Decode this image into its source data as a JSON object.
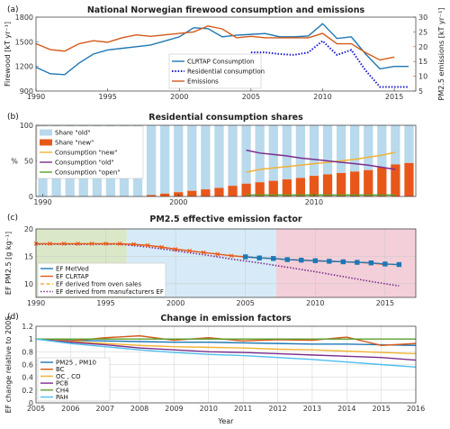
{
  "chart_data": [
    {
      "panel": "(a)",
      "type": "line",
      "title": "National Norwegian firewood consumption and emissions",
      "ylabel": "Firewood [kT yr⁻¹]",
      "y2label": "PM2.5 emissions [kT yr⁻¹]",
      "xlim": [
        1990,
        2016.5
      ],
      "ylim": [
        900,
        1800
      ],
      "y2lim": [
        5,
        30
      ],
      "xticks": [
        1990,
        1995,
        2000,
        2005,
        2010,
        2015
      ],
      "yticks": [
        900,
        1200,
        1500,
        1800
      ],
      "y2ticks": [
        5,
        10,
        15,
        20,
        25,
        30
      ],
      "left_axis_color": "#3a7fc1",
      "right_axis_color": "#d45a1a",
      "legend_position": "center",
      "series": [
        {
          "name": "CLRTAP Consumption",
          "axis": "left",
          "color": "#1f77b4",
          "style": "solid",
          "x": [
            1990,
            1991,
            1992,
            1993,
            1994,
            1995,
            1996,
            1997,
            1998,
            1999,
            2000,
            2001,
            2002,
            2003,
            2004,
            2005,
            2006,
            2007,
            2008,
            2009,
            2010,
            2011,
            2012,
            2013,
            2014,
            2015,
            2016
          ],
          "y": [
            1190,
            1110,
            1100,
            1240,
            1350,
            1400,
            1420,
            1440,
            1460,
            1510,
            1560,
            1670,
            1660,
            1560,
            1580,
            1590,
            1600,
            1560,
            1560,
            1570,
            1720,
            1540,
            1560,
            1350,
            1170,
            1200,
            1200
          ]
        },
        {
          "name": "Residential consumption",
          "axis": "left",
          "color": "#1a1acc",
          "style": "dotted",
          "x": [
            2005,
            2006,
            2007,
            2008,
            2009,
            2010,
            2011,
            2012,
            2013,
            2014,
            2015,
            2016
          ],
          "y": [
            1370,
            1370,
            1350,
            1340,
            1370,
            1510,
            1340,
            1400,
            1150,
            950,
            950,
            950
          ]
        },
        {
          "name": "Emissions",
          "axis": "right",
          "color": "#d45a1a",
          "style": "solid",
          "x": [
            1990,
            1991,
            1992,
            1993,
            1994,
            1995,
            1996,
            1997,
            1998,
            1999,
            2000,
            2001,
            2002,
            2003,
            2004,
            2005,
            2006,
            2007,
            2008,
            2009,
            2010,
            2011,
            2012,
            2013,
            2014,
            2015
          ],
          "y": [
            21,
            19,
            18.5,
            21,
            22,
            21.5,
            23,
            24,
            23.5,
            24,
            24.5,
            25,
            27,
            26,
            23,
            23.5,
            23,
            23,
            23,
            23,
            24.5,
            21,
            21,
            18,
            15.5,
            16.5
          ]
        }
      ]
    },
    {
      "panel": "(b)",
      "type": "bar",
      "title": "Residential consumption shares",
      "ylabel": "%",
      "xlim": [
        1990,
        2017
      ],
      "ylim": [
        0,
        100
      ],
      "xticks": [
        1990,
        2000,
        2010
      ],
      "yticks": [
        0,
        50,
        100
      ],
      "legend_position": "top-left",
      "series": [
        {
          "name": "Share \"old\"",
          "type": "bar",
          "color": "#b9d9ec",
          "x": [
            1990,
            1991,
            1992,
            1993,
            1994,
            1995,
            1996,
            1997,
            1998,
            1999,
            2000,
            2001,
            2002,
            2003,
            2004,
            2005,
            2006,
            2007,
            2008,
            2009,
            2010,
            2011,
            2012,
            2013,
            2014,
            2015,
            2016,
            2017
          ],
          "y": [
            100,
            100,
            100,
            100,
            100,
            100,
            100,
            100,
            98,
            96,
            94,
            92,
            90,
            88,
            85,
            82,
            80,
            78,
            76,
            74,
            71,
            69,
            67,
            65,
            63,
            59,
            55,
            53
          ]
        },
        {
          "name": "Share \"new\"",
          "type": "bar",
          "color": "#e8571a",
          "x": [
            1990,
            1991,
            1992,
            1993,
            1994,
            1995,
            1996,
            1997,
            1998,
            1999,
            2000,
            2001,
            2002,
            2003,
            2004,
            2005,
            2006,
            2007,
            2008,
            2009,
            2010,
            2011,
            2012,
            2013,
            2014,
            2015,
            2016,
            2017
          ],
          "y": [
            0,
            0,
            0,
            0,
            0,
            0,
            0,
            0,
            2,
            4,
            6,
            8,
            10,
            12,
            15,
            18,
            20,
            22,
            24,
            26,
            29,
            31,
            33,
            35,
            37,
            41,
            45,
            47
          ]
        },
        {
          "name": "Consumption \"new\"",
          "type": "line",
          "color": "#f2b233",
          "x": [
            2005,
            2006,
            2007,
            2008,
            2009,
            2010,
            2011,
            2012,
            2013,
            2014,
            2015,
            2016
          ],
          "y": [
            34,
            38,
            40,
            42,
            44,
            46,
            48,
            50,
            52,
            55,
            58,
            62
          ]
        },
        {
          "name": "Consumption \"old\"",
          "type": "line",
          "color": "#7b2d8e",
          "x": [
            2005,
            2006,
            2007,
            2008,
            2009,
            2010,
            2011,
            2012,
            2013,
            2014,
            2015,
            2016
          ],
          "y": [
            65,
            61,
            59,
            57,
            54,
            52,
            50,
            48,
            46,
            44,
            41,
            38
          ]
        },
        {
          "name": "Consumption \"open\"",
          "type": "line",
          "color": "#5aa02c",
          "x": [
            2005,
            2006,
            2007,
            2008,
            2009,
            2010,
            2011,
            2012,
            2013,
            2014,
            2015,
            2016
          ],
          "y": [
            2,
            2,
            2,
            2,
            2,
            2,
            2,
            2,
            2,
            2,
            2,
            2
          ]
        }
      ]
    },
    {
      "panel": "(c)",
      "type": "line",
      "title": "PM2.5 effective emission factor",
      "ylabel": "EF PM2.5 [g kg⁻¹]",
      "xlim": [
        1990,
        2017.2
      ],
      "ylim": [
        7.5,
        20
      ],
      "xticks": [
        1990,
        1995,
        2000,
        2005,
        2010,
        2015
      ],
      "yticks": [
        10,
        15,
        20
      ],
      "legend_position": "bottom-left",
      "shaded_regions": [
        {
          "x": [
            1990,
            1996.5
          ],
          "color": "#dbe8c8"
        },
        {
          "x": [
            1996.5,
            2007.2
          ],
          "color": "#d6ebf7"
        },
        {
          "x": [
            2007.2,
            2017.2
          ],
          "color": "#f3cfd9"
        }
      ],
      "series": [
        {
          "name": "EF MetVed",
          "color": "#1f77b4",
          "style": "solid-square",
          "x": [
            2005,
            2006,
            2007,
            2008,
            2009,
            2010,
            2011,
            2012,
            2013,
            2014,
            2015,
            2016
          ],
          "y": [
            14.9,
            14.7,
            14.6,
            14.4,
            14.3,
            14.2,
            14.1,
            14.0,
            13.9,
            13.8,
            13.6,
            13.5
          ]
        },
        {
          "name": "EF CLRTAP",
          "color": "#e8571a",
          "style": "solid-x",
          "x": [
            1990,
            1991,
            1992,
            1993,
            1994,
            1995,
            1996,
            1997,
            1998,
            1999,
            2000,
            2001,
            2002,
            2003,
            2004,
            2005,
            2006,
            2007,
            2008,
            2009,
            2010,
            2011,
            2012,
            2013,
            2014,
            2015
          ],
          "y": [
            17.3,
            17.3,
            17.3,
            17.3,
            17.3,
            17.3,
            17.3,
            17.2,
            17.0,
            16.7,
            16.3,
            16.0,
            15.7,
            15.4,
            15.1,
            14.9,
            14.7,
            14.6,
            14.4,
            14.3,
            14.2,
            14.1,
            14.0,
            13.9,
            13.8,
            13.5
          ]
        },
        {
          "name": "EF derived from oven sales",
          "color": "#f2b233",
          "style": "dashed",
          "x": [
            1990,
            1995,
            1997,
            2000,
            2003,
            2005,
            2008,
            2010,
            2013,
            2016
          ],
          "y": [
            17.3,
            17.3,
            17.2,
            16.3,
            15.4,
            14.9,
            14.4,
            14.2,
            13.9,
            13.4
          ]
        },
        {
          "name": "EF derived from manufacturers EF",
          "color": "#7b2d8e",
          "style": "dotted",
          "x": [
            1990,
            1996,
            1998,
            2000,
            2002,
            2004,
            2006,
            2008,
            2010,
            2012,
            2014,
            2016
          ],
          "y": [
            17.2,
            17.2,
            16.7,
            16.0,
            15.3,
            14.5,
            13.8,
            13.0,
            12.2,
            11.3,
            10.4,
            9.6
          ]
        }
      ]
    },
    {
      "panel": "(d)",
      "type": "line",
      "title": "Change in emission factors",
      "xlabel": "Year",
      "ylabel": "EF change relative to 2005",
      "xlim": [
        2005,
        2016
      ],
      "ylim": [
        0,
        1.2
      ],
      "xticks": [
        2005,
        2006,
        2007,
        2008,
        2009,
        2010,
        2011,
        2012,
        2013,
        2014,
        2015,
        2016
      ],
      "yticks": [
        0,
        0.2,
        0.4,
        0.6,
        0.8,
        1,
        1.2
      ],
      "legend_position": "bottom-left",
      "series": [
        {
          "name": "PM25 , PM10",
          "color": "#1f77b4",
          "x": [
            2005,
            2006,
            2007,
            2008,
            2009,
            2010,
            2011,
            2012,
            2013,
            2014,
            2015,
            2016
          ],
          "y": [
            1.0,
            0.98,
            0.97,
            0.96,
            0.95,
            0.95,
            0.94,
            0.93,
            0.92,
            0.92,
            0.91,
            0.9
          ]
        },
        {
          "name": "BC",
          "color": "#d45a1a",
          "x": [
            2005,
            2006,
            2007,
            2008,
            2009,
            2010,
            2011,
            2012,
            2013,
            2014,
            2015,
            2016
          ],
          "y": [
            1.0,
            0.97,
            1.02,
            1.05,
            0.98,
            1.02,
            0.97,
            0.99,
            0.98,
            1.03,
            0.9,
            0.93
          ]
        },
        {
          "name": "OC , CO",
          "color": "#f2b233",
          "x": [
            2005,
            2006,
            2007,
            2008,
            2009,
            2010,
            2011,
            2012,
            2013,
            2014,
            2015,
            2016
          ],
          "y": [
            1.0,
            0.96,
            0.93,
            0.9,
            0.88,
            0.87,
            0.86,
            0.84,
            0.83,
            0.81,
            0.79,
            0.77
          ]
        },
        {
          "name": "PCB",
          "color": "#7b2d8e",
          "x": [
            2005,
            2006,
            2007,
            2008,
            2009,
            2010,
            2011,
            2012,
            2013,
            2014,
            2015,
            2016
          ],
          "y": [
            1.0,
            0.95,
            0.91,
            0.86,
            0.83,
            0.8,
            0.79,
            0.77,
            0.75,
            0.73,
            0.71,
            0.67
          ]
        },
        {
          "name": "CH4",
          "color": "#5aa02c",
          "x": [
            2005,
            2016
          ],
          "y": [
            1.0,
            1.0
          ]
        },
        {
          "name": "PAH",
          "color": "#4dbeee",
          "x": [
            2005,
            2006,
            2007,
            2008,
            2009,
            2010,
            2011,
            2012,
            2013,
            2014,
            2015,
            2016
          ],
          "y": [
            1.0,
            0.93,
            0.88,
            0.83,
            0.79,
            0.76,
            0.74,
            0.71,
            0.68,
            0.64,
            0.6,
            0.56
          ]
        }
      ]
    }
  ]
}
